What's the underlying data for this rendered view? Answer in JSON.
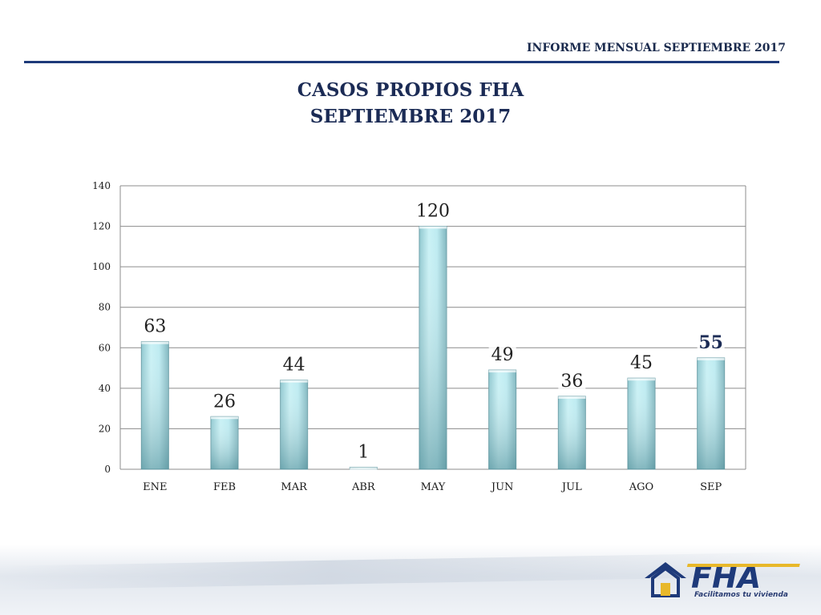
{
  "header": {
    "report_title": "INFORME MENSUAL SEPTIEMBRE 2017"
  },
  "chart_data": {
    "type": "bar",
    "title": "CASOS PROPIOS FHA",
    "subtitle": "SEPTIEMBRE 2017",
    "categories": [
      "ENE",
      "FEB",
      "MAR",
      "ABR",
      "MAY",
      "JUN",
      "JUL",
      "AGO",
      "SEP"
    ],
    "values": [
      63,
      26,
      44,
      1,
      120,
      49,
      36,
      45,
      55
    ],
    "ylim": [
      0,
      140
    ],
    "yticks": [
      0,
      20,
      40,
      60,
      80,
      100,
      120,
      140
    ],
    "grid": true,
    "xlabel": "",
    "ylabel": "",
    "bar_color": "#b6e8ef",
    "highlight_last": true
  },
  "logo": {
    "name": "FHA",
    "tagline": "Facilitamos tu vivienda",
    "icon": "house-icon"
  },
  "colors": {
    "accent": "#1e3a7a",
    "title": "#1b2b55"
  }
}
